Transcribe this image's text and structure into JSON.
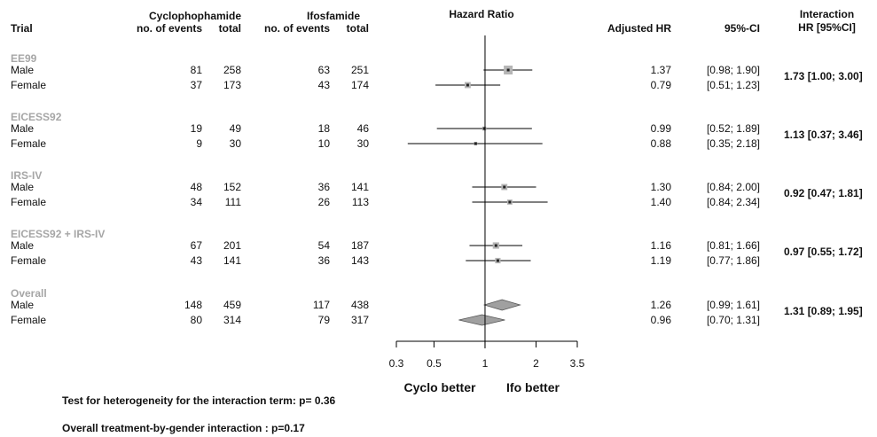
{
  "headers": {
    "trial": "Trial",
    "cyclo": "Cyclophophamide",
    "ifos": "Ifosfamide",
    "cyclo_events": "no. of events",
    "cyclo_total": "total",
    "ifos_events": "no. of events",
    "ifos_total": "total",
    "hazard_ratio": "Hazard Ratio",
    "adjusted_hr": "Adjusted HR",
    "ci": "95%-CI",
    "interaction_line1": "Interaction",
    "interaction_line2": "HR [95%CI]"
  },
  "chart_data": {
    "type": "forest",
    "title": "Hazard Ratio",
    "x_scale": "log",
    "xlim": [
      0.3,
      3.5
    ],
    "x_ticks": [
      0.3,
      0.5,
      1,
      2,
      3.5
    ],
    "x_tick_labels": [
      "0.3",
      "0.5",
      "1",
      "2",
      "3.5"
    ],
    "reference_line": 1,
    "left_label": "Cyclo better",
    "right_label": "Ifo better",
    "groups": [
      {
        "name": "EE99",
        "interaction": "1.73 [1.00; 3.00]",
        "rows": [
          {
            "label": "Male",
            "cyc_events": "81",
            "cyc_total": "258",
            "ifo_events": "63",
            "ifo_total": "251",
            "hr": 1.37,
            "lo": 0.98,
            "hi": 1.9,
            "hr_text": "1.37",
            "ci_text": "[0.98; 1.90]",
            "weight": 1.0
          },
          {
            "label": "Female",
            "cyc_events": "37",
            "cyc_total": "173",
            "ifo_events": "43",
            "ifo_total": "174",
            "hr": 0.79,
            "lo": 0.51,
            "hi": 1.23,
            "hr_text": "0.79",
            "ci_text": "[0.51; 1.23]",
            "weight": 0.55
          }
        ]
      },
      {
        "name": "EICESS92",
        "interaction": "1.13 [0.37; 3.46]",
        "rows": [
          {
            "label": "Male",
            "cyc_events": "19",
            "cyc_total": "49",
            "ifo_events": "18",
            "ifo_total": "46",
            "hr": 0.99,
            "lo": 0.52,
            "hi": 1.89,
            "hr_text": "0.99",
            "ci_text": "[0.52; 1.89]",
            "weight": 0.22
          },
          {
            "label": "Female",
            "cyc_events": "9",
            "cyc_total": "30",
            "ifo_events": "10",
            "ifo_total": "30",
            "hr": 0.88,
            "lo": 0.35,
            "hi": 2.18,
            "hr_text": "0.88",
            "ci_text": "[0.35; 2.18]",
            "weight": 0.12
          }
        ]
      },
      {
        "name": "IRS-IV",
        "interaction": "0.92 [0.47; 1.81]",
        "rows": [
          {
            "label": "Male",
            "cyc_events": "48",
            "cyc_total": "152",
            "ifo_events": "36",
            "ifo_total": "141",
            "hr": 1.3,
            "lo": 0.84,
            "hi": 2.0,
            "hr_text": "1.30",
            "ci_text": "[0.84; 2.00]",
            "weight": 0.55
          },
          {
            "label": "Female",
            "cyc_events": "34",
            "cyc_total": "111",
            "ifo_events": "26",
            "ifo_total": "113",
            "hr": 1.4,
            "lo": 0.84,
            "hi": 2.34,
            "hr_text": "1.40",
            "ci_text": "[0.84; 2.34]",
            "weight": 0.4
          }
        ]
      },
      {
        "name": "EICESS92 + IRS-IV",
        "interaction": "0.97 [0.55; 1.72]",
        "rows": [
          {
            "label": "Male",
            "cyc_events": "67",
            "cyc_total": "201",
            "ifo_events": "54",
            "ifo_total": "187",
            "hr": 1.16,
            "lo": 0.81,
            "hi": 1.66,
            "hr_text": "1.16",
            "ci_text": "[0.81; 1.66]",
            "weight": 0.6
          },
          {
            "label": "Female",
            "cyc_events": "43",
            "cyc_total": "141",
            "ifo_events": "36",
            "ifo_total": "143",
            "hr": 1.19,
            "lo": 0.77,
            "hi": 1.86,
            "hr_text": "1.19",
            "ci_text": "[0.77; 1.86]",
            "weight": 0.45
          }
        ]
      },
      {
        "name": "Overall",
        "interaction": "1.31 [0.89; 1.95]",
        "summary": true,
        "rows": [
          {
            "label": "Male",
            "cyc_events": "148",
            "cyc_total": "459",
            "ifo_events": "117",
            "ifo_total": "438",
            "hr": 1.26,
            "lo": 0.99,
            "hi": 1.61,
            "hr_text": "1.26",
            "ci_text": "[0.99; 1.61]"
          },
          {
            "label": "Female",
            "cyc_events": "80",
            "cyc_total": "314",
            "ifo_events": "79",
            "ifo_total": "317",
            "hr": 0.96,
            "lo": 0.7,
            "hi": 1.31,
            "hr_text": "0.96",
            "ci_text": "[0.70; 1.31]"
          }
        ]
      }
    ]
  },
  "footer": {
    "heterogeneity": "Test for heterogeneity for the interaction term: p= 0.36",
    "overall": "Overall treatment-by-gender interaction : p=0.17"
  }
}
